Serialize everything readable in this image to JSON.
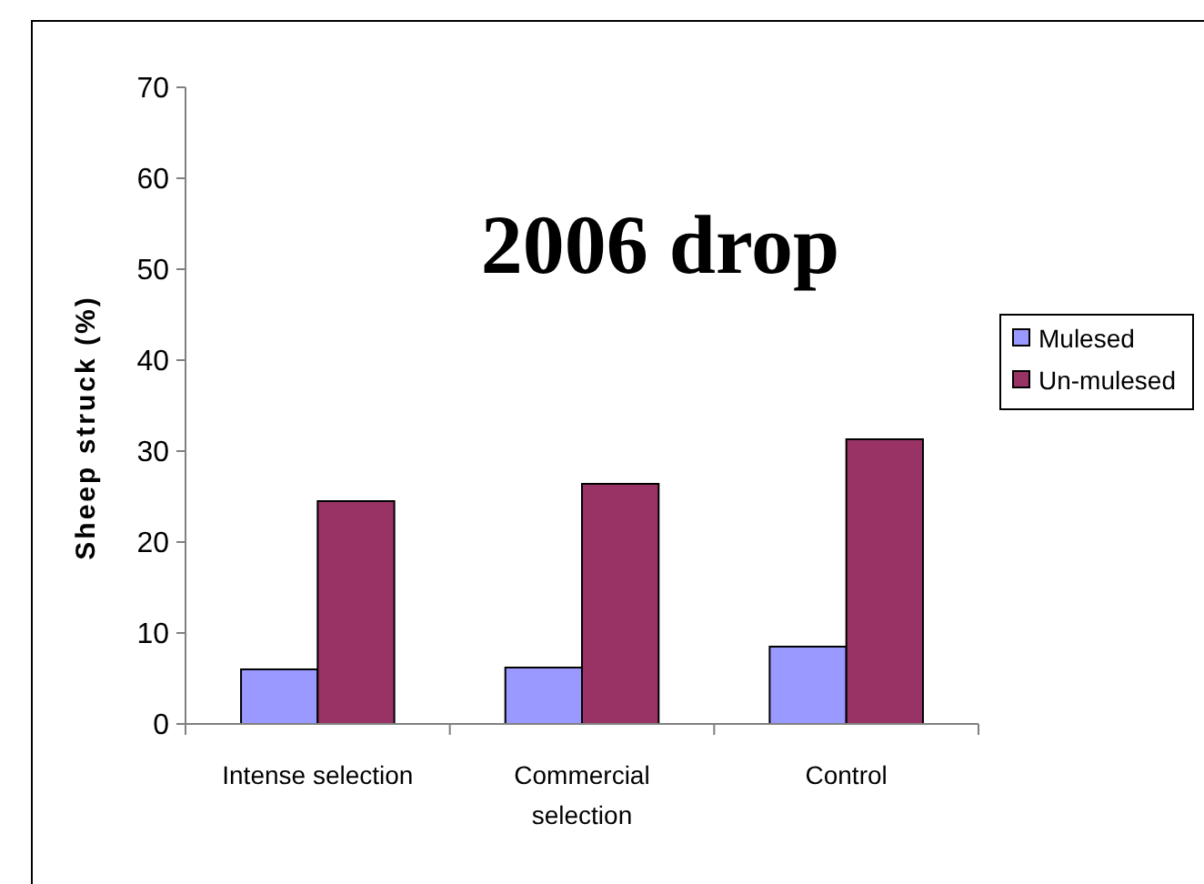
{
  "chart_data": {
    "type": "bar",
    "ylabel": "Sheep struck (%)",
    "annotations": [
      "2006 drop"
    ],
    "categories": [
      "Intense selection",
      "Commercial selection",
      "Control"
    ],
    "series": [
      {
        "name": "Mulesed",
        "color": "#9999ff",
        "values": [
          6.0,
          6.2,
          8.5
        ]
      },
      {
        "name": "Un-mulesed",
        "color": "#993366",
        "values": [
          24.5,
          26.4,
          31.3
        ]
      }
    ],
    "ylim": [
      0,
      70
    ],
    "yticks": [
      0,
      10,
      20,
      30,
      40,
      50,
      60,
      70
    ],
    "grid": false,
    "legend": "right"
  }
}
